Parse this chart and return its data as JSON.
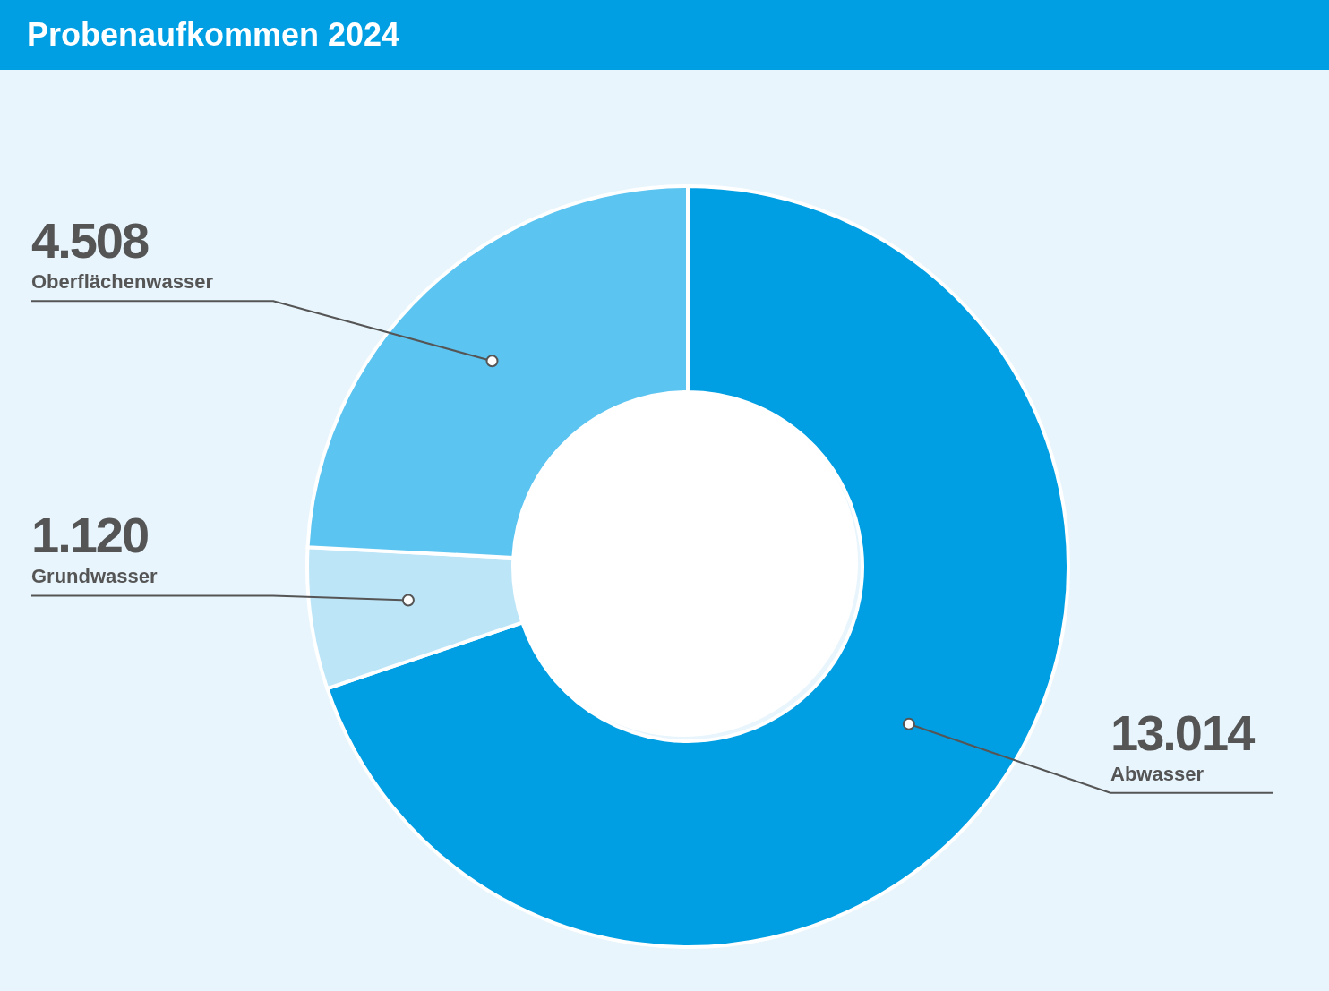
{
  "chart_data": {
    "type": "donut",
    "title": "Probenaufkommen 2024",
    "categories": [
      "Abwasser",
      "Grundwasser",
      "Oberflächenwasser"
    ],
    "values": [
      13014,
      1120,
      4508
    ],
    "value_labels": [
      "13.014",
      "1.120",
      "4.508"
    ],
    "colors": [
      "#009fe3",
      "#bde5f8",
      "#5bc4f1"
    ]
  }
}
